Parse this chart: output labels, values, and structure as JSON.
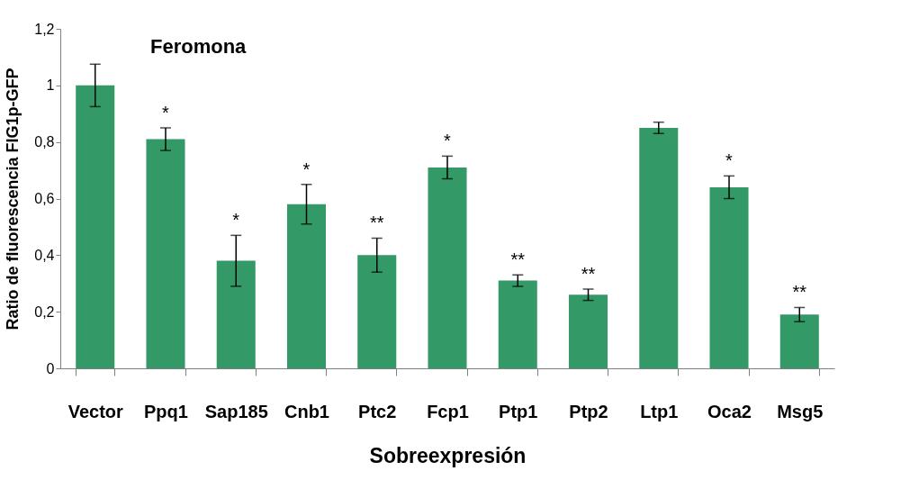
{
  "chart_data": {
    "type": "bar",
    "xlabel": "Sobreexpresión",
    "ylabel": "Ratio de fluorescencia FIG1p-GFP",
    "categories": [
      "Vector",
      "Ppq1",
      "Sap185",
      "Cnb1",
      "Ptc2",
      "Fcp1",
      "Ptp1",
      "Ptp2",
      "Ltp1",
      "Oca2",
      "Msg5"
    ],
    "values": [
      1.0,
      0.81,
      0.38,
      0.58,
      0.4,
      0.71,
      0.31,
      0.26,
      0.85,
      0.64,
      0.19
    ],
    "errors": [
      0.075,
      0.04,
      0.09,
      0.07,
      0.06,
      0.04,
      0.02,
      0.02,
      0.02,
      0.04,
      0.025
    ],
    "color": "#339966",
    "ylim": [
      0,
      1.2
    ],
    "yticks": [
      0,
      {
        "value": 0.2,
        "label": "0,2"
      },
      {
        "value": 0.4,
        "label": "0,4"
      },
      {
        "value": 0.6,
        "label": "0,6"
      },
      {
        "value": 0.8,
        "label": "0,8"
      },
      1,
      {
        "value": 1.2,
        "label": "1,2"
      }
    ],
    "grid": false,
    "annotations": [
      "Feromona",
      {
        "text": "*",
        "x": "Ppq1",
        "y": 0.81
      },
      {
        "text": "*",
        "x": "Sap185",
        "y": 0.38
      },
      {
        "text": "*",
        "x": "Cnb1",
        "y": 0.58
      },
      {
        "text": "**",
        "x": "Ptc2",
        "y": 0.4
      },
      {
        "text": "*",
        "x": "Fcp1",
        "y": 0.71
      },
      {
        "text": "**",
        "x": "Ptp1",
        "y": 0.31
      },
      {
        "text": "**",
        "x": "Ptp2",
        "y": 0.26
      },
      {
        "text": "*",
        "x": "Oca2",
        "y": 0.64
      },
      {
        "text": "**",
        "x": "Msg5",
        "y": 0.19
      }
    ]
  }
}
